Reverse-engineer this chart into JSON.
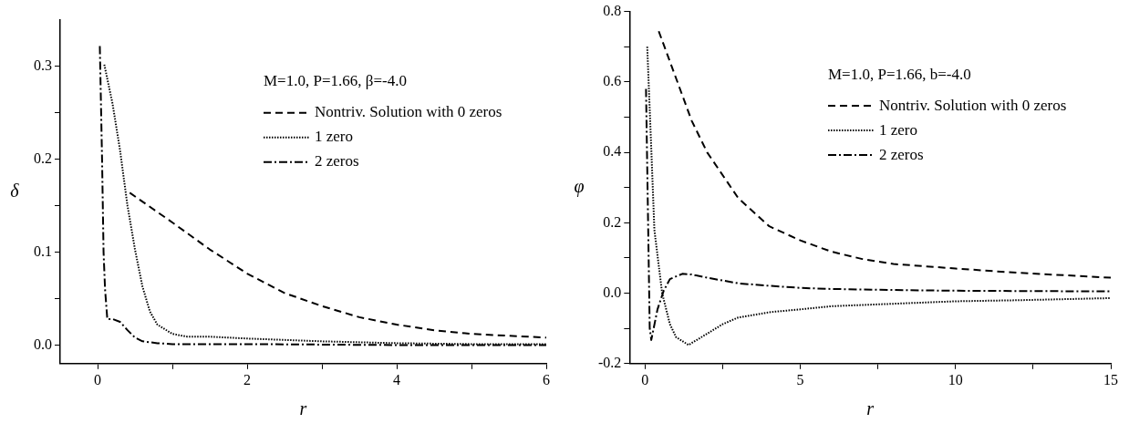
{
  "chart_data": [
    {
      "type": "line",
      "xlabel": "r",
      "ylabel": "δ",
      "legend_title": "M=1.0, P=1.66, β=-4.0",
      "legend": "top right",
      "xlim": [
        -0.5,
        6
      ],
      "ylim": [
        -0.02,
        0.35
      ],
      "xticks": [
        0,
        {
          "value": 1,
          "label": null
        },
        2,
        {
          "value": 3,
          "label": null
        },
        4,
        {
          "value": 5,
          "label": null
        },
        6
      ],
      "yticks": [
        {
          "value": 0,
          "label": "0.0"
        },
        {
          "value": 0.05,
          "label": null
        },
        {
          "value": 0.1,
          "label": "0.1"
        },
        {
          "value": 0.15,
          "label": null
        },
        {
          "value": 0.2,
          "label": "0.2"
        },
        {
          "value": 0.25,
          "label": null
        },
        {
          "value": 0.3,
          "label": "0.3"
        }
      ],
      "series": [
        {
          "name": "Nontriv. Solution with 0 zeros",
          "color": "#000000",
          "line_style": "dashed",
          "x": [
            0.43,
            1,
            1.5,
            2,
            2.5,
            3,
            3.5,
            4,
            4.5,
            5,
            6
          ],
          "values": [
            0.164,
            0.132,
            0.103,
            0.077,
            0.056,
            0.042,
            0.03,
            0.022,
            0.016,
            0.012,
            0.008
          ]
        },
        {
          "name": "1 zero",
          "color": "#000000",
          "line_style": "dotted",
          "x": [
            0.09,
            0.2,
            0.3,
            0.4,
            0.5,
            0.6,
            0.7,
            0.8,
            1,
            1.2,
            1.5,
            2,
            3,
            4,
            5,
            6
          ],
          "values": [
            0.302,
            0.26,
            0.21,
            0.15,
            0.103,
            0.063,
            0.036,
            0.022,
            0.012,
            0.009,
            0.009,
            0.007,
            0.004,
            0.002,
            0.001,
            0.001
          ]
        },
        {
          "name": "2 zeros",
          "color": "#000000",
          "line_style": "dashdot",
          "x": [
            0.03,
            0.06,
            0.08,
            0.1,
            0.13,
            0.2,
            0.3,
            0.4,
            0.5,
            0.6,
            0.8,
            1,
            2,
            4,
            6
          ],
          "values": [
            0.322,
            0.2,
            0.1,
            0.06,
            0.028,
            0.028,
            0.025,
            0.016,
            0.008,
            0.004,
            0.002,
            0.001,
            0.001,
            0,
            0
          ]
        }
      ]
    },
    {
      "type": "line",
      "xlabel": "r",
      "ylabel": "φ",
      "legend_title": "M=1.0, P=1.66, b=-4.0",
      "legend": "top right",
      "xlim": [
        -0.5,
        15
      ],
      "ylim": [
        -0.2,
        0.8
      ],
      "xticks": [
        0,
        {
          "value": 2.5,
          "label": null
        },
        5,
        {
          "value": 7.5,
          "label": null
        },
        10,
        {
          "value": 12.5,
          "label": null
        },
        15
      ],
      "yticks": [
        {
          "value": -0.2,
          "label": "-0.2"
        },
        {
          "value": -0.1,
          "label": null
        },
        {
          "value": 0,
          "label": "0.0"
        },
        {
          "value": 0.1,
          "label": null
        },
        {
          "value": 0.2,
          "label": "0.2"
        },
        {
          "value": 0.3,
          "label": null
        },
        {
          "value": 0.4,
          "label": "0.4"
        },
        {
          "value": 0.5,
          "label": null
        },
        {
          "value": 0.6,
          "label": "0.6"
        },
        {
          "value": 0.7,
          "label": null
        },
        {
          "value": 0.8,
          "label": "0.8"
        }
      ],
      "series": [
        {
          "name": "Nontriv. Solution with 0 zeros",
          "color": "#000000",
          "line_style": "dashed",
          "x": [
            0.44,
            1,
            1.5,
            2,
            3,
            4,
            5,
            6,
            7,
            8,
            10,
            12,
            15
          ],
          "values": [
            0.744,
            0.61,
            0.49,
            0.4,
            0.27,
            0.19,
            0.15,
            0.118,
            0.097,
            0.083,
            0.07,
            0.058,
            0.044
          ]
        },
        {
          "name": "1 zero",
          "color": "#000000",
          "line_style": "dotted",
          "x": [
            0.07,
            0.2,
            0.3,
            0.55,
            0.8,
            1,
            1.4,
            2,
            2.5,
            3,
            4,
            5,
            6,
            8,
            10,
            12,
            15
          ],
          "values": [
            0.7,
            0.41,
            0.18,
            0,
            -0.088,
            -0.125,
            -0.147,
            -0.115,
            -0.088,
            -0.069,
            -0.054,
            -0.046,
            -0.037,
            -0.03,
            -0.023,
            -0.02,
            -0.014
          ]
        },
        {
          "name": "2 zeros",
          "color": "#000000",
          "line_style": "dashdot",
          "x": [
            0.03,
            0.08,
            0.15,
            0.2,
            0.4,
            0.6,
            0.8,
            1.2,
            1.5,
            2,
            3,
            4,
            5,
            6,
            8,
            10,
            15
          ],
          "values": [
            0.58,
            0.3,
            -0.1,
            -0.133,
            -0.046,
            0.007,
            0.04,
            0.055,
            0.053,
            0.044,
            0.028,
            0.021,
            0.015,
            0.012,
            0.009,
            0.007,
            0.005
          ]
        }
      ]
    }
  ]
}
